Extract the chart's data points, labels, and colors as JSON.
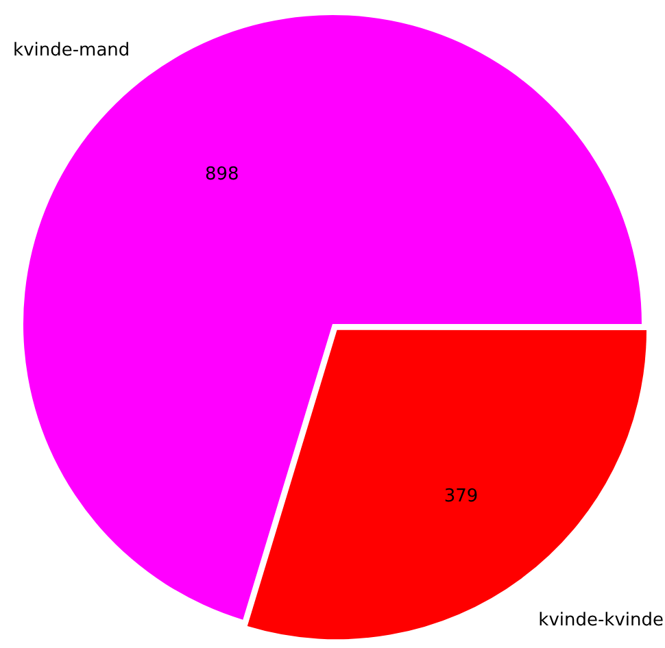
{
  "chart_data": {
    "type": "pie",
    "categories": [
      "kvinde-mand",
      "kvinde-kvinde"
    ],
    "values": [
      898,
      379
    ],
    "colors": [
      "#ff00ff",
      "#ff0000"
    ],
    "data_labels": true,
    "legend": false
  }
}
